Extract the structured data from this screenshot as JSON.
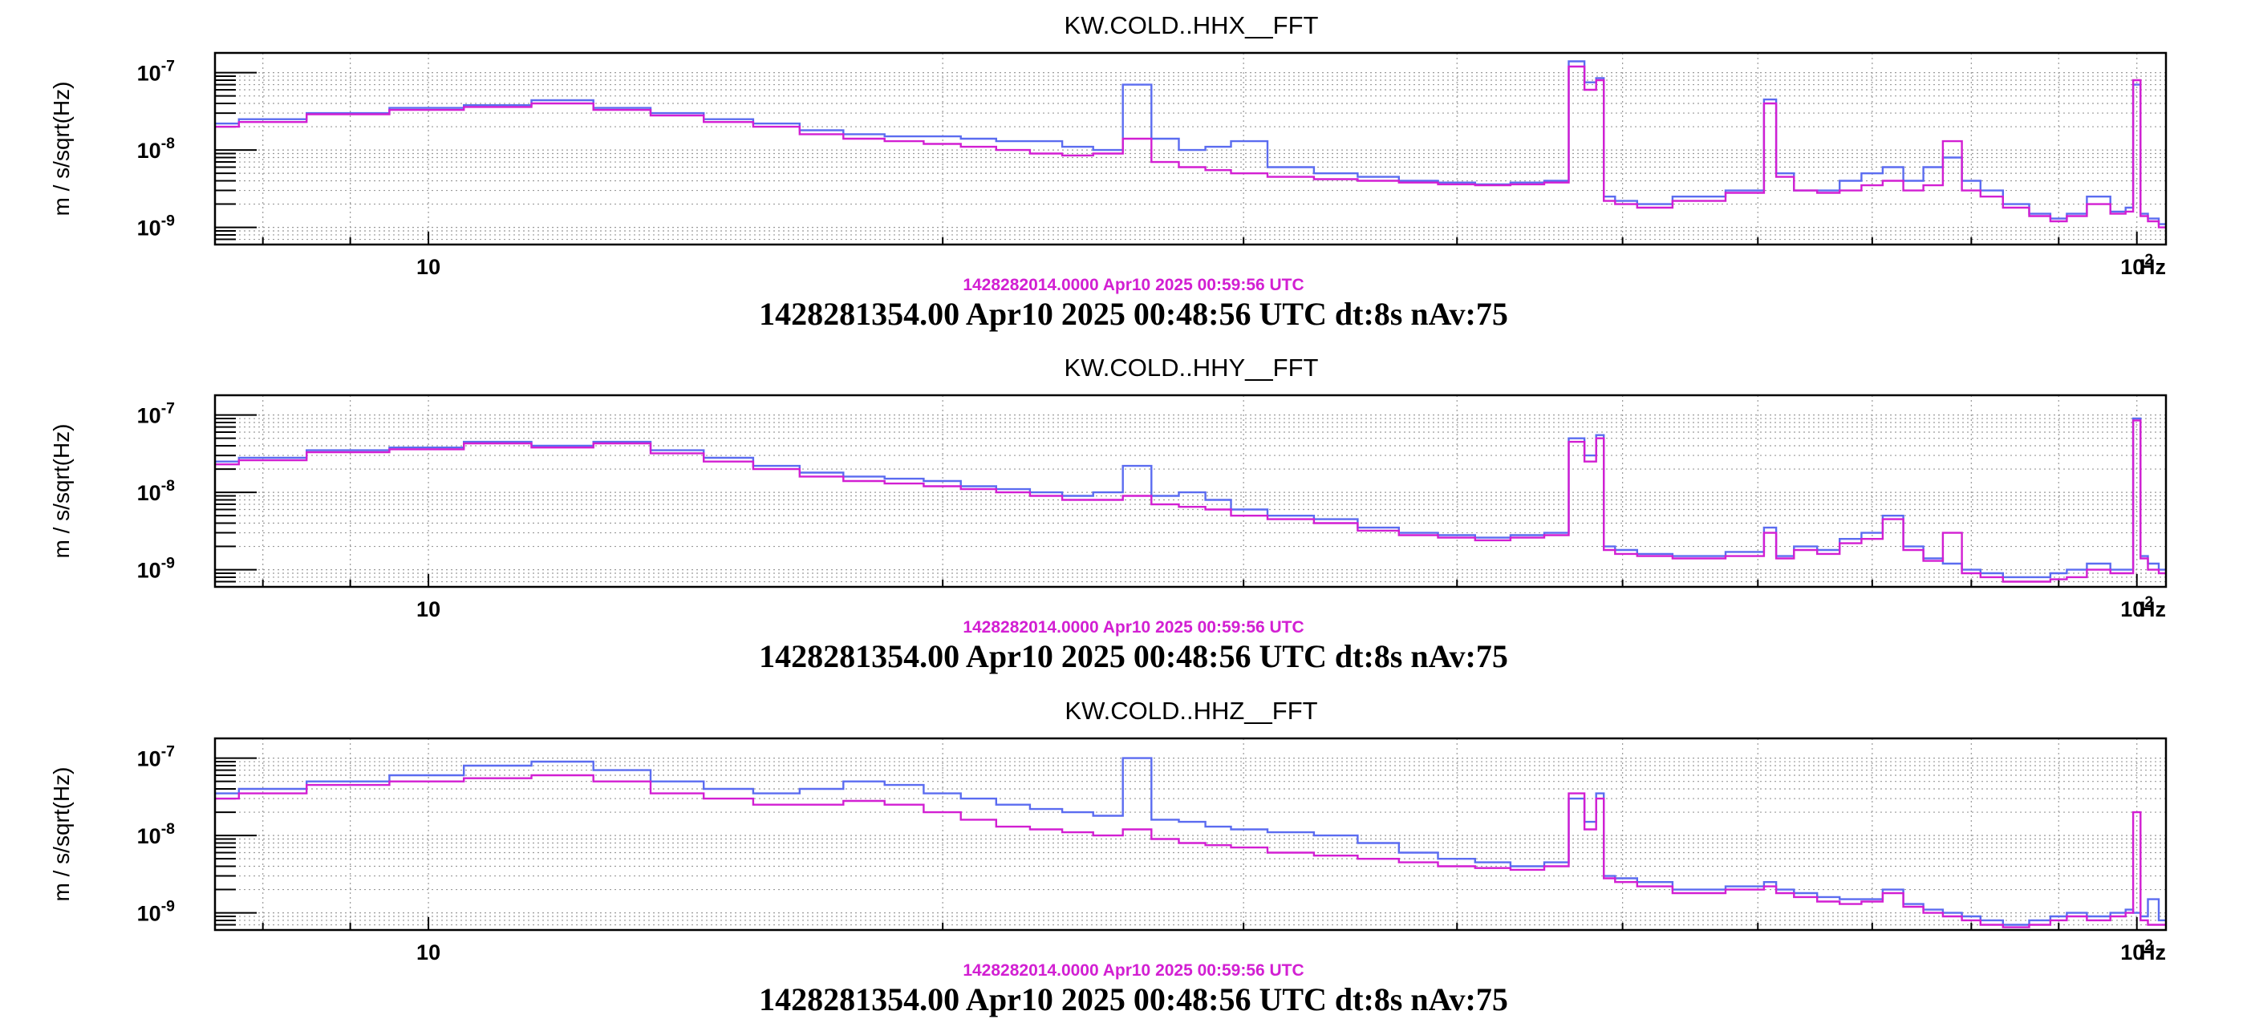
{
  "colors": {
    "blue": "#5b6cf0",
    "magenta": "#d21fd2",
    "axis": "#000000",
    "grid": "#9a9a9a"
  },
  "chart_data": [
    {
      "type": "line",
      "title": "KW.COLD..HHX__FFT",
      "ylabel": "m / s/sqrt(Hz)",
      "xlabel": "Hz",
      "x_scale": "log",
      "y_scale": "log",
      "xlim": [
        7.5,
        104
      ],
      "ylim": [
        6e-10,
        1.8e-07
      ],
      "x_tick_labels": [
        "10",
        "10²"
      ],
      "y_tick_labels": [
        "10⁻⁷",
        "10⁻⁸",
        "10⁻⁹"
      ],
      "ref_time_label": "1428282014.0000 Apr10 2025 00:59:56 UTC",
      "time_label": "1428281354.00 Apr10 2025 00:48:56 UTC dt:8s nAv:75",
      "series": [
        {
          "color": "blue",
          "x": [
            7.5,
            8,
            9,
            10,
            11,
            12,
            13,
            14,
            15,
            16,
            17,
            18,
            19,
            20,
            21,
            22,
            23,
            24,
            25,
            26,
            27,
            28,
            29,
            30,
            32,
            34,
            36,
            38,
            40,
            42,
            44,
            46,
            47,
            48,
            48.5,
            49,
            50,
            52,
            55,
            60,
            61,
            62,
            64,
            66,
            68,
            70,
            72,
            74,
            76,
            78,
            80,
            82,
            85,
            88,
            90,
            92,
            95,
            98,
            99,
            100,
            101,
            102,
            104
          ],
          "y": [
            2.2e-08,
            2.5e-08,
            3e-08,
            3.5e-08,
            3.8e-08,
            4.4e-08,
            3.5e-08,
            3e-08,
            2.5e-08,
            2.2e-08,
            1.8e-08,
            1.6e-08,
            1.5e-08,
            1.5e-08,
            1.4e-08,
            1.3e-08,
            1.3e-08,
            1.1e-08,
            1e-08,
            7e-08,
            1.4e-08,
            1e-08,
            1.1e-08,
            1.3e-08,
            6e-09,
            5e-09,
            4.5e-09,
            4e-09,
            3.8e-09,
            3.6e-09,
            3.8e-09,
            4e-09,
            1.4e-07,
            7.5e-08,
            8.5e-08,
            2.5e-09,
            2.2e-09,
            2e-09,
            2.5e-09,
            3e-09,
            4.5e-08,
            5e-09,
            3e-09,
            3e-09,
            4e-09,
            5e-09,
            6e-09,
            4e-09,
            6e-09,
            8e-09,
            4e-09,
            3e-09,
            2e-09,
            1.5e-09,
            1.3e-09,
            1.5e-09,
            2.5e-09,
            1.6e-09,
            1.8e-09,
            7e-08,
            1.5e-09,
            1.3e-09,
            1.1e-09
          ]
        },
        {
          "color": "magenta",
          "x": [
            7.5,
            8,
            9,
            10,
            11,
            12,
            13,
            14,
            15,
            16,
            17,
            18,
            19,
            20,
            21,
            22,
            23,
            24,
            25,
            26,
            27,
            28,
            29,
            30,
            32,
            34,
            36,
            38,
            40,
            42,
            44,
            46,
            47,
            48,
            48.5,
            49,
            50,
            52,
            55,
            60,
            61,
            62,
            64,
            66,
            68,
            70,
            72,
            74,
            76,
            78,
            80,
            82,
            85,
            88,
            90,
            92,
            95,
            98,
            99,
            100,
            101,
            102,
            104
          ],
          "y": [
            2e-08,
            2.3e-08,
            2.9e-08,
            3.3e-08,
            3.6e-08,
            4e-08,
            3.3e-08,
            2.8e-08,
            2.3e-08,
            2e-08,
            1.6e-08,
            1.4e-08,
            1.3e-08,
            1.2e-08,
            1.1e-08,
            1e-08,
            9e-09,
            8.5e-09,
            9e-09,
            1.4e-08,
            7e-09,
            6e-09,
            5.5e-09,
            5e-09,
            4.5e-09,
            4.2e-09,
            4e-09,
            3.8e-09,
            3.6e-09,
            3.5e-09,
            3.6e-09,
            3.8e-09,
            1.2e-07,
            6e-08,
            8e-08,
            2.2e-09,
            2e-09,
            1.8e-09,
            2.2e-09,
            2.8e-09,
            4e-08,
            4.5e-09,
            3e-09,
            2.8e-09,
            3e-09,
            3.5e-09,
            4e-09,
            3e-09,
            3.5e-09,
            1.3e-08,
            3e-09,
            2.5e-09,
            1.8e-09,
            1.4e-09,
            1.2e-09,
            1.4e-09,
            2e-09,
            1.5e-09,
            1.6e-09,
            8e-08,
            1.4e-09,
            1.2e-09,
            1e-09
          ]
        }
      ]
    },
    {
      "type": "line",
      "title": "KW.COLD..HHY__FFT",
      "ylabel": "m / s/sqrt(Hz)",
      "xlabel": "Hz",
      "x_scale": "log",
      "y_scale": "log",
      "xlim": [
        7.5,
        104
      ],
      "ylim": [
        6e-10,
        1.8e-07
      ],
      "x_tick_labels": [
        "10",
        "10²"
      ],
      "y_tick_labels": [
        "10⁻⁷",
        "10⁻⁸",
        "10⁻⁹"
      ],
      "ref_time_label": "1428282014.0000 Apr10 2025 00:59:56 UTC",
      "time_label": "1428281354.00 Apr10 2025 00:48:56 UTC dt:8s nAv:75",
      "series": [
        {
          "color": "blue",
          "x": [
            7.5,
            8,
            9,
            10,
            11,
            12,
            13,
            14,
            15,
            16,
            17,
            18,
            19,
            20,
            21,
            22,
            23,
            24,
            25,
            26,
            27,
            28,
            29,
            30,
            32,
            34,
            36,
            38,
            40,
            42,
            44,
            46,
            47,
            48,
            48.5,
            49,
            50,
            52,
            55,
            60,
            61,
            62,
            64,
            66,
            68,
            70,
            72,
            74,
            76,
            78,
            80,
            82,
            85,
            88,
            90,
            92,
            95,
            98,
            99,
            100,
            101,
            102,
            104
          ],
          "y": [
            2.5e-08,
            2.8e-08,
            3.5e-08,
            3.8e-08,
            4.5e-08,
            4e-08,
            4.5e-08,
            3.5e-08,
            2.8e-08,
            2.2e-08,
            1.8e-08,
            1.6e-08,
            1.5e-08,
            1.4e-08,
            1.2e-08,
            1.1e-08,
            1e-08,
            9e-09,
            1e-08,
            2.2e-08,
            9e-09,
            1e-08,
            8e-09,
            6e-09,
            5e-09,
            4.5e-09,
            3.5e-09,
            3e-09,
            2.8e-09,
            2.6e-09,
            2.8e-09,
            3e-09,
            5e-08,
            3e-08,
            5.5e-08,
            2e-09,
            1.8e-09,
            1.6e-09,
            1.5e-09,
            1.7e-09,
            3.5e-09,
            1.5e-09,
            2e-09,
            1.8e-09,
            2.5e-09,
            3e-09,
            5e-09,
            2e-09,
            1.4e-09,
            1.2e-09,
            1e-09,
            9e-10,
            8e-10,
            8e-10,
            9e-10,
            1e-09,
            1.2e-09,
            1e-09,
            1e-09,
            9e-08,
            1.5e-09,
            1.2e-09,
            1e-09
          ]
        },
        {
          "color": "magenta",
          "x": [
            7.5,
            8,
            9,
            10,
            11,
            12,
            13,
            14,
            15,
            16,
            17,
            18,
            19,
            20,
            21,
            22,
            23,
            24,
            25,
            26,
            27,
            28,
            29,
            30,
            32,
            34,
            36,
            38,
            40,
            42,
            44,
            46,
            47,
            48,
            48.5,
            49,
            50,
            52,
            55,
            60,
            61,
            62,
            64,
            66,
            68,
            70,
            72,
            74,
            76,
            78,
            80,
            82,
            85,
            88,
            90,
            92,
            95,
            98,
            99,
            100,
            101,
            102,
            104
          ],
          "y": [
            2.3e-08,
            2.6e-08,
            3.3e-08,
            3.6e-08,
            4.3e-08,
            3.8e-08,
            4.3e-08,
            3.2e-08,
            2.5e-08,
            2e-08,
            1.6e-08,
            1.4e-08,
            1.3e-08,
            1.2e-08,
            1.1e-08,
            1e-08,
            9e-09,
            8e-09,
            8e-09,
            9e-09,
            7e-09,
            6.5e-09,
            6e-09,
            5e-09,
            4.5e-09,
            4e-09,
            3.2e-09,
            2.8e-09,
            2.6e-09,
            2.4e-09,
            2.6e-09,
            2.8e-09,
            4.5e-08,
            2.5e-08,
            5e-08,
            1.8e-09,
            1.6e-09,
            1.5e-09,
            1.4e-09,
            1.5e-09,
            3e-09,
            1.4e-09,
            1.8e-09,
            1.6e-09,
            2.2e-09,
            2.5e-09,
            4.5e-09,
            1.8e-09,
            1.3e-09,
            3e-09,
            9e-10,
            8e-10,
            7e-10,
            7e-10,
            7.5e-10,
            8e-10,
            1e-09,
            9e-10,
            9e-10,
            8.5e-08,
            1.4e-09,
            1e-09,
            9e-10
          ]
        }
      ]
    },
    {
      "type": "line",
      "title": "KW.COLD..HHZ__FFT",
      "ylabel": "m / s/sqrt(Hz)",
      "xlabel": "Hz",
      "x_scale": "log",
      "y_scale": "log",
      "xlim": [
        7.5,
        104
      ],
      "ylim": [
        6e-10,
        1.8e-07
      ],
      "x_tick_labels": [
        "10",
        "10²"
      ],
      "y_tick_labels": [
        "10⁻⁷",
        "10⁻⁸",
        "10⁻⁹"
      ],
      "ref_time_label": "1428282014.0000 Apr10 2025 00:59:56 UTC",
      "time_label": "1428281354.00 Apr10 2025 00:48:56 UTC dt:8s nAv:75",
      "series": [
        {
          "color": "blue",
          "x": [
            7.5,
            8,
            9,
            10,
            11,
            12,
            13,
            14,
            15,
            16,
            17,
            18,
            19,
            20,
            21,
            22,
            23,
            24,
            25,
            26,
            27,
            28,
            29,
            30,
            32,
            34,
            36,
            38,
            40,
            42,
            44,
            46,
            47,
            48,
            48.5,
            49,
            50,
            52,
            55,
            60,
            61,
            62,
            64,
            66,
            68,
            70,
            72,
            74,
            76,
            78,
            80,
            82,
            85,
            88,
            90,
            92,
            95,
            98,
            99,
            100,
            101,
            102,
            104
          ],
          "y": [
            3.5e-08,
            4e-08,
            5e-08,
            6e-08,
            8e-08,
            9e-08,
            7e-08,
            5e-08,
            4e-08,
            3.5e-08,
            4e-08,
            5e-08,
            4.5e-08,
            3.5e-08,
            3e-08,
            2.5e-08,
            2.2e-08,
            2e-08,
            1.8e-08,
            1e-07,
            1.6e-08,
            1.5e-08,
            1.3e-08,
            1.2e-08,
            1.1e-08,
            1e-08,
            8e-09,
            6e-09,
            5e-09,
            4.5e-09,
            4e-09,
            4.5e-09,
            3e-08,
            1.5e-08,
            3.5e-08,
            3e-09,
            2.8e-09,
            2.5e-09,
            2e-09,
            2.2e-09,
            2.5e-09,
            2e-09,
            1.8e-09,
            1.6e-09,
            1.5e-09,
            1.5e-09,
            2e-09,
            1.3e-09,
            1.1e-09,
            1e-09,
            9e-10,
            8e-10,
            7e-10,
            8e-10,
            9e-10,
            1e-09,
            9e-10,
            1e-09,
            1.1e-09,
            1e-09,
            9e-10,
            1.5e-09,
            8e-10
          ]
        },
        {
          "color": "magenta",
          "x": [
            7.5,
            8,
            9,
            10,
            11,
            12,
            13,
            14,
            15,
            16,
            17,
            18,
            19,
            20,
            21,
            22,
            23,
            24,
            25,
            26,
            27,
            28,
            29,
            30,
            32,
            34,
            36,
            38,
            40,
            42,
            44,
            46,
            47,
            48,
            48.5,
            49,
            50,
            52,
            55,
            60,
            61,
            62,
            64,
            66,
            68,
            70,
            72,
            74,
            76,
            78,
            80,
            82,
            85,
            88,
            90,
            92,
            95,
            98,
            99,
            100,
            101,
            102,
            104
          ],
          "y": [
            3e-08,
            3.5e-08,
            4.5e-08,
            5e-08,
            5.5e-08,
            6e-08,
            5e-08,
            3.5e-08,
            3e-08,
            2.5e-08,
            2.5e-08,
            2.8e-08,
            2.5e-08,
            2e-08,
            1.6e-08,
            1.3e-08,
            1.2e-08,
            1.1e-08,
            1e-08,
            1.2e-08,
            9e-09,
            8e-09,
            7.5e-09,
            7e-09,
            6e-09,
            5.5e-09,
            5e-09,
            4.5e-09,
            4e-09,
            3.8e-09,
            3.6e-09,
            4e-09,
            3.5e-08,
            1.2e-08,
            3e-08,
            2.8e-09,
            2.5e-09,
            2.2e-09,
            1.8e-09,
            2e-09,
            2.2e-09,
            1.8e-09,
            1.6e-09,
            1.4e-09,
            1.3e-09,
            1.4e-09,
            1.8e-09,
            1.2e-09,
            1e-09,
            9e-10,
            8e-10,
            7e-10,
            6.5e-10,
            7e-10,
            8e-10,
            9e-10,
            8e-10,
            9e-10,
            1e-09,
            2e-08,
            8e-10,
            7e-10,
            7e-10
          ]
        }
      ]
    }
  ]
}
